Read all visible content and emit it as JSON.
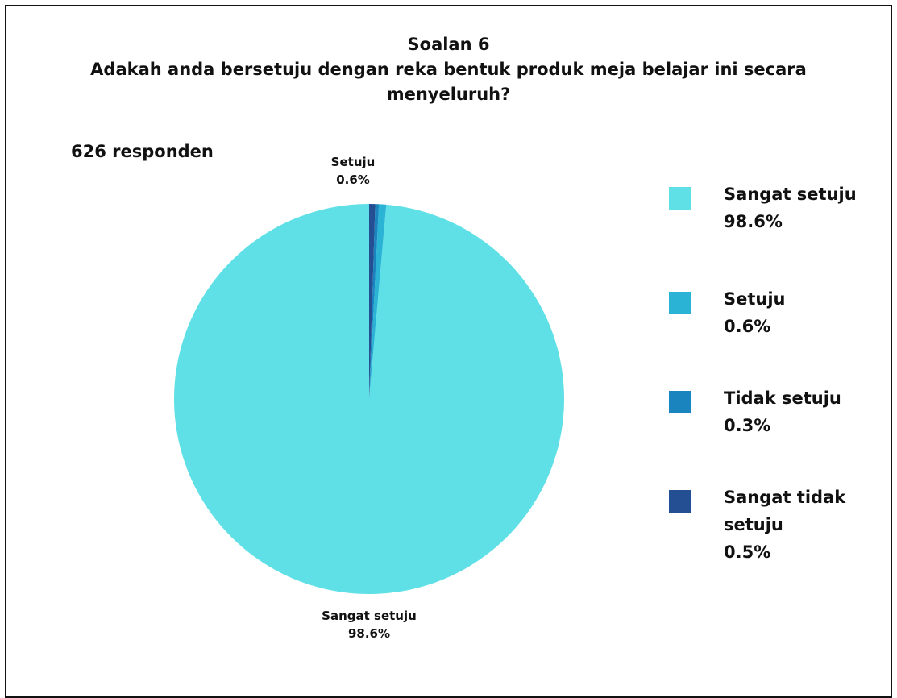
{
  "chart_data": {
    "type": "pie",
    "title": "Soalan 6",
    "subtitle": "Adakah anda bersetuju dengan reka bentuk produk meja belajar ini secara menyeluruh?",
    "annotation": "626 responden",
    "legend_position": "right",
    "slices": [
      {
        "label": "Sangat setuju",
        "value": 98.6,
        "display": "98.6%",
        "color": "#5ee0e6"
      },
      {
        "label": "Setuju",
        "value": 0.6,
        "display": "0.6%",
        "color": "#2bb3d6"
      },
      {
        "label": "Tidak setuju",
        "value": 0.3,
        "display": "0.3%",
        "color": "#1a84bf"
      },
      {
        "label": "Sangat tidak setuju",
        "value": 0.5,
        "display": "0.5%",
        "color": "#254f93"
      }
    ]
  }
}
